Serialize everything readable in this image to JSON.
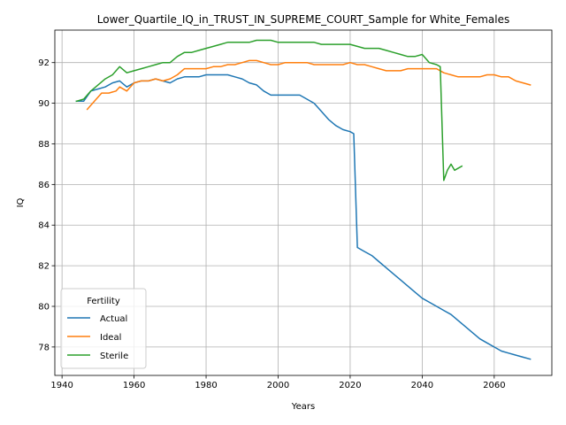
{
  "chart_data": {
    "type": "line",
    "title": "Lower_Quartile_IQ_in_TRUST_IN_SUPREME_COURT_Sample for White_Females",
    "xlabel": "Years",
    "ylabel": "IQ",
    "xlim": [
      1938,
      2076
    ],
    "ylim": [
      76.6,
      93.6
    ],
    "xticks": [
      1940,
      1960,
      1980,
      2000,
      2020,
      2040,
      2060
    ],
    "yticks": [
      78,
      80,
      82,
      84,
      86,
      88,
      90,
      92
    ],
    "grid": true,
    "legend": {
      "title": "Fertility",
      "placement": "lower-left"
    },
    "series": [
      {
        "name": "Actual",
        "color": "#1f77b4",
        "x": [
          1944,
          1946,
          1948,
          1950,
          1952,
          1954,
          1956,
          1958,
          1960,
          1962,
          1964,
          1966,
          1968,
          1970,
          1972,
          1974,
          1976,
          1978,
          1980,
          1982,
          1984,
          1986,
          1988,
          1990,
          1992,
          1994,
          1996,
          1998,
          2000,
          2002,
          2004,
          2006,
          2008,
          2010,
          2012,
          2014,
          2016,
          2018,
          2020,
          2021,
          2022,
          2024,
          2026,
          2028,
          2030,
          2032,
          2034,
          2036,
          2038,
          2040,
          2042,
          2044,
          2046,
          2048,
          2050,
          2052,
          2054,
          2056,
          2058,
          2060,
          2062,
          2064,
          2066,
          2068,
          2070
        ],
        "values": [
          90.1,
          90.1,
          90.6,
          90.7,
          90.8,
          91.0,
          91.1,
          90.8,
          91.0,
          91.1,
          91.1,
          91.2,
          91.1,
          91.0,
          91.2,
          91.3,
          91.3,
          91.3,
          91.4,
          91.4,
          91.4,
          91.4,
          91.3,
          91.2,
          91.0,
          90.9,
          90.6,
          90.4,
          90.4,
          90.4,
          90.4,
          90.4,
          90.2,
          90.0,
          89.6,
          89.2,
          88.9,
          88.7,
          88.6,
          88.5,
          82.9,
          82.7,
          82.5,
          82.2,
          81.9,
          81.6,
          81.3,
          81.0,
          80.7,
          80.4,
          80.2,
          80.0,
          79.8,
          79.6,
          79.3,
          79.0,
          78.7,
          78.4,
          78.2,
          78.0,
          77.8,
          77.7,
          77.6,
          77.5,
          77.4
        ]
      },
      {
        "name": "Ideal",
        "color": "#ff7f0e",
        "x": [
          1947,
          1949,
          1951,
          1953,
          1955,
          1956,
          1958,
          1960,
          1962,
          1964,
          1966,
          1968,
          1970,
          1972,
          1974,
          1976,
          1978,
          1980,
          1982,
          1984,
          1986,
          1988,
          1990,
          1992,
          1994,
          1996,
          1998,
          2000,
          2002,
          2004,
          2006,
          2008,
          2010,
          2012,
          2014,
          2016,
          2018,
          2020,
          2022,
          2024,
          2026,
          2028,
          2030,
          2032,
          2034,
          2036,
          2038,
          2040,
          2042,
          2044,
          2046,
          2048,
          2050,
          2052,
          2054,
          2056,
          2058,
          2060,
          2062,
          2064,
          2066,
          2068,
          2070
        ],
        "values": [
          89.7,
          90.1,
          90.5,
          90.5,
          90.6,
          90.8,
          90.6,
          91.0,
          91.1,
          91.1,
          91.2,
          91.1,
          91.2,
          91.4,
          91.7,
          91.7,
          91.7,
          91.7,
          91.8,
          91.8,
          91.9,
          91.9,
          92.0,
          92.1,
          92.1,
          92.0,
          91.9,
          91.9,
          92.0,
          92.0,
          92.0,
          92.0,
          91.9,
          91.9,
          91.9,
          91.9,
          91.9,
          92.0,
          91.9,
          91.9,
          91.8,
          91.7,
          91.6,
          91.6,
          91.6,
          91.7,
          91.7,
          91.7,
          91.7,
          91.7,
          91.5,
          91.4,
          91.3,
          91.3,
          91.3,
          91.3,
          91.4,
          91.4,
          91.3,
          91.3,
          91.1,
          91.0,
          90.9
        ]
      },
      {
        "name": "Sterile",
        "color": "#2ca02c",
        "x": [
          1944,
          1946,
          1948,
          1950,
          1952,
          1954,
          1956,
          1958,
          1960,
          1962,
          1964,
          1966,
          1968,
          1970,
          1972,
          1974,
          1976,
          1978,
          1980,
          1982,
          1984,
          1986,
          1988,
          1990,
          1992,
          1994,
          1996,
          1998,
          2000,
          2002,
          2004,
          2006,
          2008,
          2010,
          2012,
          2014,
          2016,
          2018,
          2020,
          2022,
          2024,
          2026,
          2028,
          2030,
          2032,
          2034,
          2036,
          2038,
          2040,
          2042,
          2044,
          2045,
          2046,
          2047,
          2048,
          2049,
          2051
        ],
        "values": [
          90.1,
          90.2,
          90.6,
          90.9,
          91.2,
          91.4,
          91.8,
          91.5,
          91.6,
          91.7,
          91.8,
          91.9,
          92.0,
          92.0,
          92.3,
          92.5,
          92.5,
          92.6,
          92.7,
          92.8,
          92.9,
          93.0,
          93.0,
          93.0,
          93.0,
          93.1,
          93.1,
          93.1,
          93.0,
          93.0,
          93.0,
          93.0,
          93.0,
          93.0,
          92.9,
          92.9,
          92.9,
          92.9,
          92.9,
          92.8,
          92.7,
          92.7,
          92.7,
          92.6,
          92.5,
          92.4,
          92.3,
          92.3,
          92.4,
          92.0,
          91.9,
          91.8,
          86.2,
          86.7,
          87.0,
          86.7,
          86.9
        ]
      }
    ]
  }
}
